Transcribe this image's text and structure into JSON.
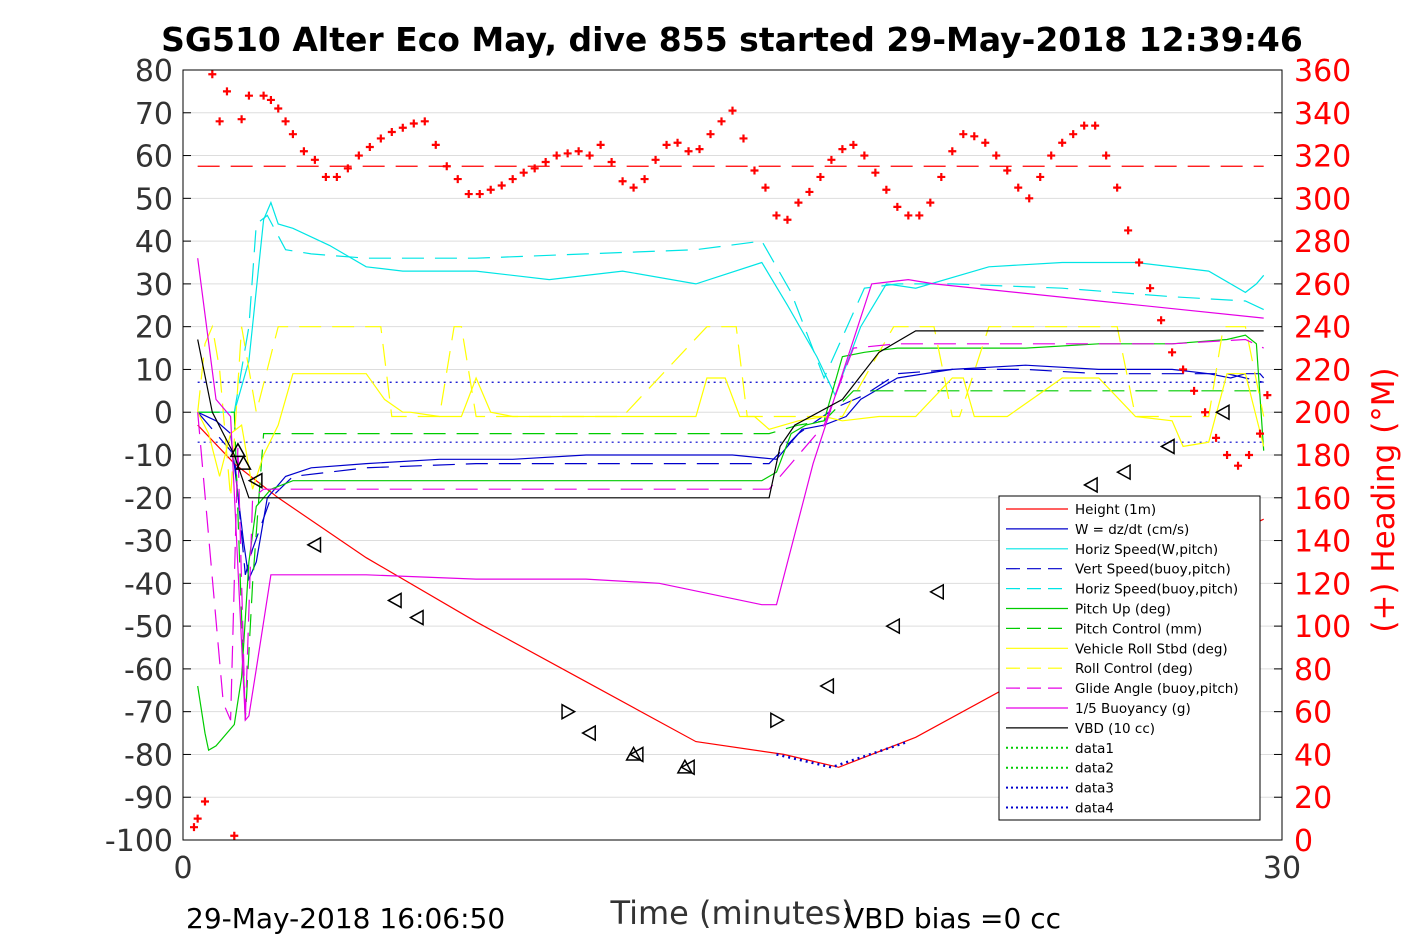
{
  "chart_data": {
    "type": "line",
    "title": "SG510 Alter Eco May, dive 855 started 29-May-2018 12:39:46",
    "xlabel": "Time (minutes)",
    "ylabel_right": "(+) Heading (°M)",
    "footer_left": "29-May-2018 16:06:50",
    "footer_right": "VBD bias =0 cc",
    "xlim": [
      0,
      30
    ],
    "ylim": [
      -100,
      80
    ],
    "y2lim": [
      0,
      360
    ],
    "x_ticks": [
      "0",
      "30"
    ],
    "y_ticks": [
      "80",
      "70",
      "60",
      "50",
      "40",
      "30",
      "20",
      "10",
      "0",
      "-10",
      "-20",
      "-30",
      "-40",
      "-50",
      "-60",
      "-70",
      "-80",
      "-90",
      "-100"
    ],
    "y2_ticks": [
      "360",
      "340",
      "320",
      "300",
      "280",
      "260",
      "240",
      "220",
      "200",
      "180",
      "160",
      "140",
      "120",
      "100",
      "80",
      "60",
      "40",
      "20",
      "0"
    ],
    "grid": true,
    "legend_position": "bottom-right",
    "colors": {
      "red": "#ff0000",
      "blue": "#0000cc",
      "cyan": "#00e5e5",
      "green": "#00cc00",
      "yellow": "#ffff00",
      "magenta": "#e600e6",
      "black": "#000000",
      "heading": "#ff0000"
    },
    "series": [
      {
        "name": "Height (1m)",
        "color": "#ff0000",
        "dash": "solid",
        "x": [
          0.4,
          1.4,
          2.6,
          5,
          8,
          11,
          14,
          16.4,
          17.9,
          20,
          23,
          26,
          29,
          29.5
        ],
        "y": [
          -3,
          -12,
          -20,
          -34,
          -49,
          -63,
          -77,
          -80,
          -83,
          -76,
          -62,
          -45,
          -27,
          -25
        ]
      },
      {
        "name": "W = dz/dt (cm/s)",
        "color": "#0000cc",
        "dash": "solid",
        "x": [
          0.4,
          0.9,
          1.3,
          1.65,
          1.8,
          2,
          2.3,
          2.8,
          3.5,
          5,
          7,
          9,
          11,
          13,
          15,
          16.2,
          16.9,
          17.5,
          18.1,
          18.5,
          19.5,
          21,
          23,
          25,
          27,
          28,
          28.6,
          29,
          29.4,
          29.5
        ],
        "y": [
          0,
          -2,
          -5,
          -30,
          -39,
          -35,
          -20,
          -15,
          -13,
          -12,
          -11,
          -11,
          -10,
          -10,
          -10,
          -11,
          -4,
          -3,
          -1,
          3,
          8,
          10,
          11,
          10,
          10,
          9,
          8,
          9,
          9,
          8
        ]
      },
      {
        "name": "Horiz Speed(W,pitch)",
        "color": "#00e5e5",
        "dash": "solid",
        "x": [
          0.4,
          1.4,
          1.8,
          2.2,
          2.4,
          2.6,
          3,
          4,
          5,
          6,
          8,
          10,
          12,
          14,
          15.8,
          16.5,
          17.3,
          17.8,
          18.5,
          19.2,
          20,
          22,
          24,
          26,
          28,
          29,
          29.3,
          29.5
        ],
        "y": [
          0,
          0,
          12,
          45,
          49,
          44,
          43,
          39,
          34,
          33,
          33,
          31,
          33,
          30,
          35,
          25,
          13,
          4,
          20,
          30,
          29,
          34,
          35,
          35,
          33,
          28,
          30,
          32
        ]
      },
      {
        "name": "Vert Speed(buoy,pitch)",
        "color": "#0000cc",
        "dash": "dash",
        "x": [
          0.4,
          1.4,
          1.7,
          1.9,
          2.4,
          3,
          5,
          8,
          11,
          14,
          16,
          16.8,
          17.8,
          18.6,
          19.5,
          21,
          23,
          25,
          27,
          28.5,
          29,
          29.5
        ],
        "y": [
          0,
          -10,
          -38,
          -32,
          -20,
          -15,
          -13,
          -12,
          -12,
          -12,
          -12,
          -5,
          1,
          4,
          9,
          10,
          10,
          9,
          9,
          9,
          8,
          7
        ]
      },
      {
        "name": "Horiz Speed(buoy,pitch)",
        "color": "#00e5e5",
        "dash": "dash",
        "x": [
          0.4,
          1.4,
          1.6,
          1.8,
          2,
          2.3,
          2.8,
          3.5,
          5,
          8,
          11,
          14,
          15.8,
          16.6,
          17.5,
          18.6,
          19.5,
          21,
          24,
          27,
          29,
          29.5
        ],
        "y": [
          0,
          0,
          10,
          20,
          44,
          46,
          38,
          37,
          36,
          36,
          37,
          38,
          40,
          28,
          8,
          29,
          30,
          30,
          29,
          27,
          26,
          24
        ]
      },
      {
        "name": "Pitch Up (deg)",
        "color": "#00cc00",
        "dash": "solid",
        "x": [
          0.4,
          0.6,
          0.7,
          0.9,
          1.4,
          1.6,
          1.8,
          2,
          2.4,
          3,
          5,
          8,
          11,
          14,
          15.8,
          16.2,
          16.6,
          17,
          17.5,
          18,
          18.6,
          19.5,
          21,
          23,
          25,
          27,
          28.5,
          29,
          29.3,
          29.5
        ],
        "y": [
          -64,
          -75,
          -79,
          -78,
          -73,
          -62,
          -35,
          -22,
          -18,
          -16,
          -16,
          -16,
          -16,
          -16,
          -16,
          -14,
          -5,
          -3,
          -2,
          13,
          14,
          15,
          15,
          15,
          16,
          16,
          17,
          18,
          16,
          -9
        ]
      },
      {
        "name": "Pitch Control (mm)",
        "color": "#00cc00",
        "dash": "dash",
        "x": [
          0.4,
          1.4,
          1.7,
          1.9,
          2.2,
          3,
          8,
          12,
          16,
          16.8,
          17.5,
          18.3,
          19.2,
          23,
          27,
          29.5
        ],
        "y": [
          0,
          0,
          -72,
          -40,
          -5,
          -5,
          -5,
          -5,
          -5,
          -3,
          -2,
          5,
          5,
          5,
          5,
          5
        ]
      },
      {
        "name": "Vehicle Roll Stbd (deg)",
        "color": "#ffff00",
        "dash": "solid",
        "x": [
          0.4,
          0.7,
          1,
          1.3,
          1.6,
          1.9,
          2.2,
          2.6,
          3,
          5,
          5.5,
          6,
          6.2,
          7,
          7.6,
          8,
          8.4,
          9,
          10,
          13,
          14,
          14.3,
          14.8,
          15.2,
          15.6,
          16,
          16.8,
          17.5,
          18,
          19,
          20,
          21,
          21.3,
          21.6,
          22,
          22.5,
          24,
          25,
          26,
          27,
          27.3,
          28,
          28.5,
          29,
          29.5
        ],
        "y": [
          0,
          -5,
          -15,
          -5,
          -3,
          -18,
          -10,
          -3,
          9,
          9,
          3,
          0,
          0,
          -1,
          -1,
          8,
          0,
          -1,
          -1,
          -1,
          -1,
          8,
          8,
          -1,
          -1,
          -4,
          -2,
          -1,
          -2,
          -1,
          -1,
          8,
          8,
          -1,
          -1,
          -1,
          8,
          8,
          -1,
          -2,
          -8,
          -7,
          9,
          9,
          -8
        ]
      },
      {
        "name": "Roll Control (deg)",
        "color": "#ffff00",
        "dash": "dash",
        "x": [
          0.4,
          0.6,
          0.8,
          1,
          1.3,
          1.6,
          2,
          2.3,
          2.6,
          3,
          3.5,
          4,
          5.4,
          5.7,
          6,
          7,
          7.4,
          7.6,
          8,
          9,
          10,
          11,
          12,
          14.3,
          14.6,
          15.1,
          15.4,
          16,
          17,
          18,
          19.4,
          19.6,
          20.5,
          21,
          21.2,
          22,
          23,
          24,
          25.5,
          26,
          27,
          28,
          28.4,
          29,
          29.5
        ],
        "y": [
          0,
          16,
          20,
          10,
          -20,
          20,
          0,
          10,
          20,
          20,
          20,
          20,
          20,
          -1,
          -1,
          -1,
          20,
          20,
          -1,
          -1,
          -1,
          -1,
          -1,
          20,
          20,
          20,
          -1,
          -1,
          -1,
          -1,
          20,
          20,
          20,
          -1,
          -1,
          20,
          20,
          20,
          20,
          -1,
          -1,
          -1,
          20,
          20,
          -1
        ]
      },
      {
        "name": "Glide Angle (buoy,pitch)",
        "color": "#e600e6",
        "dash": "dash",
        "x": [
          0.4,
          1.1,
          1.3,
          1.5,
          1.7,
          1.9,
          2.2,
          2.6,
          3,
          5,
          8,
          11,
          14,
          16,
          16.6,
          17.5,
          18.3,
          19.5,
          21,
          24,
          27,
          29,
          29.5
        ],
        "y": [
          0,
          -68,
          -72,
          -8,
          -72,
          -20,
          -18,
          -18,
          -18,
          -18,
          -18,
          -18,
          -18,
          -18,
          -12,
          -3,
          15,
          16,
          16,
          16,
          16,
          17,
          15
        ]
      },
      {
        "name": "1/5 Buoyancy (g)",
        "color": "#e600e6",
        "dash": "solid",
        "x": [
          0.4,
          0.9,
          1.3,
          1.7,
          1.8,
          2,
          2.4,
          3,
          5,
          8,
          11,
          13,
          15.8,
          16.2,
          17.2,
          18.8,
          19.8,
          20.5,
          25,
          29.5
        ],
        "y": [
          36,
          3,
          -1,
          -72,
          -71,
          -60,
          -38,
          -38,
          -38,
          -39,
          -39,
          -40,
          -45,
          -45,
          -12,
          30,
          31,
          30,
          26,
          22
        ]
      },
      {
        "name": "VBD (10 cc)",
        "color": "#000000",
        "dash": "solid",
        "x": [
          0.4,
          0.8,
          1.4,
          1.8,
          2.4,
          3,
          8,
          13,
          16,
          16.3,
          16.7,
          18,
          19,
          20,
          25,
          29.5
        ],
        "y": [
          17,
          0,
          -10,
          -20,
          -20,
          -20,
          -20,
          -20,
          -20,
          -8,
          -3,
          3,
          14,
          19,
          19,
          19
        ]
      },
      {
        "name": "data1",
        "color": "#00cc00",
        "dash": "dot",
        "x": [],
        "y": []
      },
      {
        "name": "data2",
        "color": "#00cc00",
        "dash": "dot",
        "x": [],
        "y": []
      },
      {
        "name": "data3",
        "color": "#0000cc",
        "dash": "dot",
        "x": [
          16.2,
          17.7,
          19.8
        ],
        "y": [
          -80,
          -83,
          -77
        ]
      },
      {
        "name": "data4",
        "color": "#0000cc",
        "dash": "dot",
        "x": [],
        "y": []
      }
    ],
    "reference_lines": [
      {
        "label": "data-ref-dotted-upper",
        "color": "#0000cc",
        "dash": "dot",
        "y": 7
      },
      {
        "label": "data-ref-dotted-lower",
        "color": "#0000cc",
        "dash": "dot",
        "y": -7
      }
    ],
    "heading_mean": {
      "color": "#ff0000",
      "dash": "dash",
      "y2": 315
    },
    "heading_markers": {
      "color": "#ff0000",
      "marker": "+",
      "axis": "right",
      "x": [
        0.3,
        0.4,
        0.6,
        0.8,
        1,
        1.2,
        1.4,
        1.6,
        1.8,
        2.2,
        2.4,
        2.6,
        2.8,
        3,
        3.3,
        3.6,
        3.9,
        4.2,
        4.5,
        4.8,
        5.1,
        5.4,
        5.7,
        6,
        6.3,
        6.6,
        6.9,
        7.2,
        7.5,
        7.8,
        8.1,
        8.4,
        8.7,
        9,
        9.3,
        9.6,
        9.9,
        10.2,
        10.5,
        10.8,
        11.1,
        11.4,
        11.7,
        12,
        12.3,
        12.6,
        12.9,
        13.2,
        13.5,
        13.8,
        14.1,
        14.4,
        14.7,
        15,
        15.3,
        15.6,
        15.9,
        16.2,
        16.5,
        16.8,
        17.1,
        17.4,
        17.7,
        18,
        18.3,
        18.6,
        18.9,
        19.2,
        19.5,
        19.8,
        20.1,
        20.4,
        20.7,
        21,
        21.3,
        21.6,
        21.9,
        22.2,
        22.5,
        22.8,
        23.1,
        23.4,
        23.7,
        24,
        24.3,
        24.6,
        24.9,
        25.2,
        25.5,
        25.8,
        26.1,
        26.4,
        26.7,
        27,
        27.3,
        27.6,
        27.9,
        28.2,
        28.5,
        28.8,
        29.1,
        29.4,
        29.6
      ],
      "y": [
        6,
        10,
        18,
        358,
        336,
        350,
        2,
        337,
        348,
        348,
        346,
        342,
        336,
        330,
        322,
        318,
        310,
        310,
        314,
        320,
        324,
        328,
        331,
        333,
        335,
        336,
        325,
        315,
        309,
        302,
        302,
        304,
        306,
        309,
        312,
        314,
        317,
        320,
        321,
        322,
        320,
        325,
        317,
        308,
        305,
        309,
        318,
        325,
        326,
        322,
        323,
        330,
        336,
        341,
        328,
        313,
        305,
        292,
        290,
        298,
        303,
        310,
        318,
        323,
        325,
        320,
        312,
        304,
        296,
        292,
        292,
        298,
        310,
        322,
        330,
        329,
        326,
        320,
        313,
        305,
        300,
        310,
        320,
        326,
        330,
        334,
        334,
        320,
        305,
        285,
        270,
        258,
        243,
        228,
        220,
        210,
        200,
        188,
        180,
        175,
        180,
        190,
        208
      ]
    },
    "triangle_markers": {
      "color": "#000000",
      "points": [
        [
          1.5,
          -9,
          "up"
        ],
        [
          1.65,
          -12,
          "up"
        ],
        [
          2,
          -16,
          "left"
        ],
        [
          3.6,
          -31,
          "left"
        ],
        [
          5.8,
          -44,
          "left"
        ],
        [
          6.4,
          -48,
          "left"
        ],
        [
          10.5,
          -70,
          "right"
        ],
        [
          11.1,
          -75,
          "left"
        ],
        [
          12.3,
          -80,
          "up"
        ],
        [
          12.4,
          -80,
          "left"
        ],
        [
          13.7,
          -83,
          "up"
        ],
        [
          13.8,
          -83,
          "left"
        ],
        [
          16.2,
          -72,
          "right"
        ],
        [
          17.6,
          -64,
          "left"
        ],
        [
          19.4,
          -50,
          "left"
        ],
        [
          20.6,
          -42,
          "left"
        ],
        [
          24.8,
          -17,
          "left"
        ],
        [
          25.7,
          -14,
          "left"
        ],
        [
          26.9,
          -8,
          "left"
        ],
        [
          28.4,
          0,
          "left"
        ]
      ]
    }
  }
}
